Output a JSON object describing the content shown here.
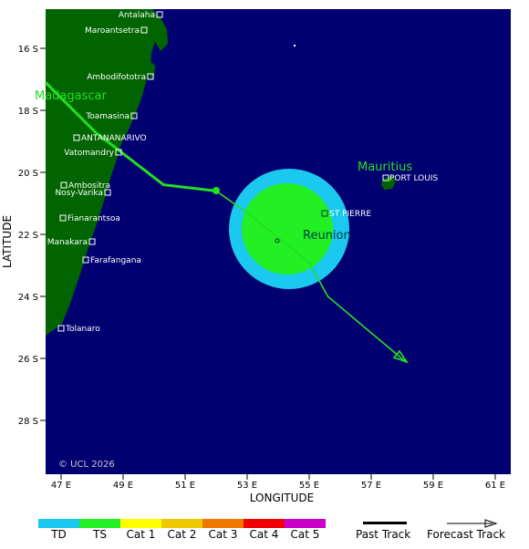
{
  "map": {
    "x_axis_title": "LONGITUDE",
    "y_axis_title": "LATITUDE",
    "copyright": "© UCL 2026",
    "x_ticks": [
      "47 E",
      "49 E",
      "51 E",
      "53 E",
      "55 E",
      "57 E",
      "59 E",
      "61 E"
    ],
    "y_ticks": [
      "16 S",
      "18 S",
      "20 S",
      "22 S",
      "24 S",
      "26 S",
      "28 S"
    ],
    "regions": [
      "Madagascar",
      "Mauritius",
      "Reunion"
    ],
    "cities": [
      "Antalaha",
      "Maroantsetra",
      "Ambodifototra",
      "Toamasina",
      "ANTANANARIVO",
      "Vatomandry",
      "Ambositra",
      "Nosy-Varika",
      "Fianarantsoa",
      "Manakara",
      "Farafangana",
      "Tolanaro",
      "PORT LOUIS",
      "ST PIERRE"
    ],
    "colors": {
      "ocean": "#000070",
      "land": "#006400",
      "past_track": "#22e022",
      "forecast_track": "#22e022",
      "wind_outer": "#1ac8f0",
      "wind_inner": "#22f022"
    },
    "past_track": [
      {
        "lon": 46.5,
        "lat": -17.1
      },
      {
        "lon": 48.1,
        "lat": -18.7
      },
      {
        "lon": 50.3,
        "lat": -20.4
      },
      {
        "lon": 52.0,
        "lat": -20.6
      }
    ],
    "forecast_track": [
      {
        "lon": 52.0,
        "lat": -20.6
      },
      {
        "lon": 53.0,
        "lat": -21.3
      },
      {
        "lon": 54.0,
        "lat": -22.1
      },
      {
        "lon": 55.0,
        "lat": -22.9
      },
      {
        "lon": 55.6,
        "lat": -24.0
      },
      {
        "lon": 58.1,
        "lat": -26.1
      }
    ]
  },
  "legend": {
    "categories": [
      {
        "label": "TD",
        "color": "#1ac8f0"
      },
      {
        "label": "TS",
        "color": "#22f022"
      },
      {
        "label": "Cat 1",
        "color": "#ffff00"
      },
      {
        "label": "Cat 2",
        "color": "#f0c800"
      },
      {
        "label": "Cat 3",
        "color": "#f07800"
      },
      {
        "label": "Cat 4",
        "color": "#f00000"
      },
      {
        "label": "Cat 5",
        "color": "#c800c8"
      }
    ],
    "past_track_label": "Past Track",
    "forecast_track_label": "Forecast Track"
  }
}
